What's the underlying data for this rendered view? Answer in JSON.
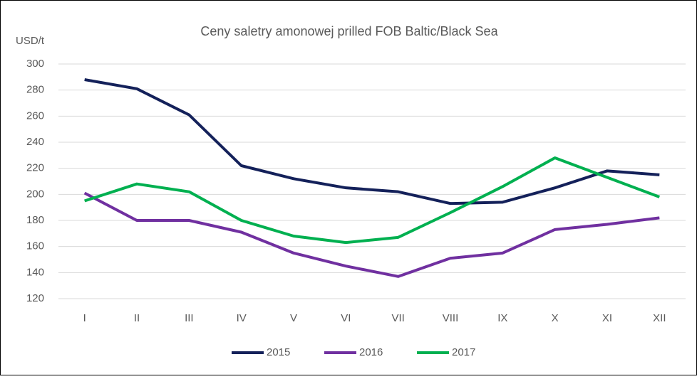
{
  "chart_data": {
    "type": "line",
    "title": "Ceny saletry amonowej prilled FOB Baltic/Black Sea",
    "y_label": "USD/t",
    "categories": [
      "I",
      "II",
      "III",
      "IV",
      "V",
      "VI",
      "VII",
      "VIII",
      "IX",
      "X",
      "XI",
      "XII"
    ],
    "series": [
      {
        "name": "2015",
        "color": "#14215a",
        "values": [
          288,
          281,
          261,
          222,
          212,
          205,
          202,
          193,
          194,
          205,
          218,
          215
        ]
      },
      {
        "name": "2016",
        "color": "#7030a0",
        "values": [
          201,
          180,
          180,
          171,
          155,
          145,
          137,
          151,
          155,
          173,
          177,
          182
        ]
      },
      {
        "name": "2017",
        "color": "#00b050",
        "values": [
          195,
          208,
          202,
          180,
          168,
          163,
          167,
          186,
          206,
          228,
          213,
          198
        ]
      }
    ],
    "ylim": [
      120,
      300
    ],
    "yticks": [
      120,
      140,
      160,
      180,
      200,
      220,
      240,
      260,
      280,
      300
    ],
    "grid": true,
    "legend": "bottom"
  }
}
